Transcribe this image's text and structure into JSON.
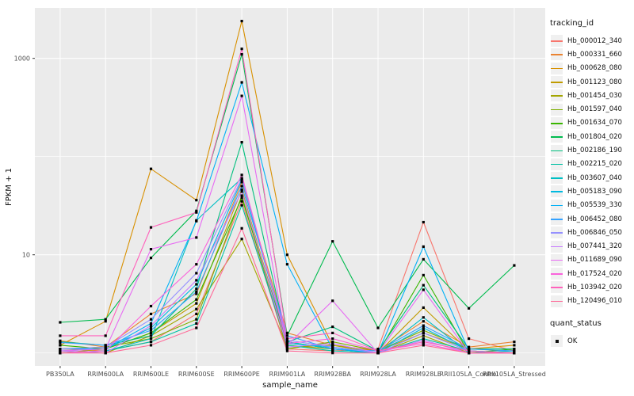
{
  "figure": {
    "background": "#ffffff",
    "panel_background": "#ebebeb",
    "grid_color": "#ffffff"
  },
  "axes": {
    "ylabel": "FPKM + 1",
    "xlabel": "sample_name",
    "y_scale": "log10",
    "y_tick_labels": [
      "10",
      "1000"
    ],
    "y_tick_values": [
      10,
      1000
    ],
    "y_minor_values": [
      1,
      100
    ]
  },
  "legend": {
    "title": "tracking_id",
    "quant_title": "quant_status",
    "quant_items": [
      {
        "label": "OK"
      }
    ]
  },
  "chart_data": {
    "type": "line",
    "title": "",
    "xlabel": "sample_name",
    "ylabel": "FPKM + 1",
    "yscale": "log10",
    "ylim": [
      0.75,
      3200
    ],
    "yticks": [
      10,
      1000
    ],
    "legend_position": "right",
    "grid": true,
    "point_marker": "black-square (quant_status OK)",
    "categories": [
      "PB350LA",
      "RRIM600LA",
      "RRIM600LE",
      "RRIM600SE",
      "RRIM600PE",
      "RRIM901LA",
      "RRIM928BA",
      "RRIM928LA",
      "RRIM928LE",
      "RRII105LA_Control",
      "RRII105LA_Stressed"
    ],
    "series": [
      {
        "name": "Hb_000012_340",
        "color": "#F8766D",
        "values": [
          1.1,
          1.05,
          1.3,
          2.5,
          35,
          1.1,
          1.05,
          1.1,
          21.5,
          1.4,
          1.05
        ]
      },
      {
        "name": "Hb_000331_660",
        "color": "#EA8331",
        "values": [
          1.33,
          1.15,
          2.5,
          4.0,
          55,
          1.6,
          1.2,
          1.05,
          2.1,
          1.15,
          1.3
        ]
      },
      {
        "name": "Hb_000628_080",
        "color": "#D89000",
        "values": [
          1.2,
          2.1,
          75,
          36,
          2400,
          10,
          1.2,
          1.05,
          1.6,
          1.1,
          1.2
        ]
      },
      {
        "name": "Hb_001123_080",
        "color": "#C09B00",
        "values": [
          1.0,
          1.1,
          1.6,
          3.2,
          46,
          1.2,
          1.1,
          1.0,
          2.9,
          1.05,
          1.0
        ]
      },
      {
        "name": "Hb_001454_030",
        "color": "#A3A500",
        "values": [
          1.05,
          1.0,
          1.5,
          2.8,
          14.5,
          1.15,
          1.2,
          1.0,
          1.5,
          1.0,
          1.0
        ]
      },
      {
        "name": "Hb_001597_040",
        "color": "#7CAE00",
        "values": [
          1.1,
          1.15,
          1.4,
          2.2,
          40,
          1.1,
          1.3,
          1.05,
          1.7,
          1.1,
          1.05
        ]
      },
      {
        "name": "Hb_001634_070",
        "color": "#39B600",
        "values": [
          1.2,
          1.1,
          1.6,
          3.5,
          38,
          1.3,
          1.1,
          1.0,
          6.2,
          1.0,
          1.1
        ]
      },
      {
        "name": "Hb_001804_020",
        "color": "#00BB4E",
        "values": [
          2.05,
          2.2,
          9.3,
          28,
          1100,
          1.5,
          13.7,
          1.8,
          9.0,
          2.85,
          7.8
        ]
      },
      {
        "name": "Hb_002186_190",
        "color": "#00BF7D",
        "values": [
          1.3,
          1.2,
          1.5,
          4.5,
          140,
          1.3,
          1.85,
          1.05,
          4.9,
          1.1,
          1.1
        ]
      },
      {
        "name": "Hb_002215_020",
        "color": "#00C1A3",
        "values": [
          1.0,
          1.05,
          1.3,
          2.0,
          32,
          1.2,
          1.05,
          1.0,
          1.4,
          1.05,
          1.0
        ]
      },
      {
        "name": "Hb_003607_040",
        "color": "#00BFC4",
        "values": [
          1.0,
          1.05,
          1.4,
          22.4,
          60,
          1.3,
          1.1,
          1.0,
          2.3,
          1.0,
          1.05
        ]
      },
      {
        "name": "Hb_005183_090",
        "color": "#00BAE0",
        "values": [
          1.05,
          1.1,
          1.8,
          5.0,
          58,
          1.25,
          1.15,
          1.0,
          1.8,
          1.05,
          1.0
        ]
      },
      {
        "name": "Hb_005539_330",
        "color": "#00B0F6",
        "values": [
          1.1,
          1.1,
          2.0,
          22,
          570,
          8.0,
          1.1,
          1.0,
          12.1,
          1.05,
          1.0
        ]
      },
      {
        "name": "Hb_006452_080",
        "color": "#35A2FF",
        "values": [
          1.28,
          1.2,
          1.7,
          4.2,
          50,
          1.5,
          1.1,
          1.05,
          1.9,
          1.1,
          1.05
        ]
      },
      {
        "name": "Hb_006846_050",
        "color": "#9590FF",
        "values": [
          1.1,
          1.15,
          2.2,
          6.5,
          60,
          1.35,
          1.15,
          1.0,
          1.6,
          1.05,
          1.0
        ]
      },
      {
        "name": "Hb_007441_320",
        "color": "#C77CFF",
        "values": [
          1.05,
          1.0,
          1.9,
          5.5,
          44,
          1.15,
          1.25,
          1.0,
          1.35,
          1.0,
          1.0
        ]
      },
      {
        "name": "Hb_011689_090",
        "color": "#E76BF3",
        "values": [
          1.05,
          1.1,
          11.4,
          15,
          415,
          1.2,
          3.4,
          1.0,
          4.4,
          1.0,
          1.0
        ]
      },
      {
        "name": "Hb_017524_020",
        "color": "#FA62DB",
        "values": [
          1.0,
          1.05,
          3.0,
          8.0,
          65,
          1.25,
          1.4,
          1.05,
          1.25,
          1.0,
          1.0
        ]
      },
      {
        "name": "Hb_103942_020",
        "color": "#FF62BC",
        "values": [
          1.5,
          1.5,
          19,
          27,
          1250,
          1.4,
          1.6,
          1.05,
          1.3,
          1.05,
          1.0
        ]
      },
      {
        "name": "Hb_120496_010",
        "color": "#FF6A98",
        "values": [
          1.0,
          1.0,
          1.2,
          1.8,
          18.6,
          1.05,
          1.0,
          1.0,
          1.2,
          1.0,
          1.0
        ]
      }
    ]
  }
}
